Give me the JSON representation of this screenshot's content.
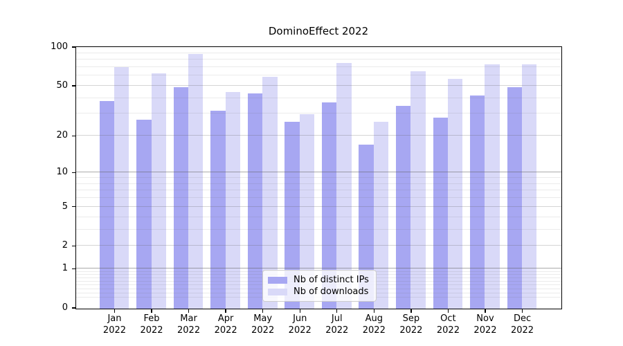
{
  "title": "DominoEffect 2022",
  "chart_data": {
    "type": "bar",
    "title": "DominoEffect 2022",
    "categories": [
      "Jan",
      "Feb",
      "Mar",
      "Apr",
      "May",
      "Jun",
      "Jul",
      "Aug",
      "Sep",
      "Oct",
      "Nov",
      "Dec"
    ],
    "category_year": "2022",
    "series": [
      {
        "name": "Nb of distinct IPs",
        "color": "#a7a7f2",
        "values": [
          38,
          27,
          49,
          32,
          44,
          26,
          37,
          17,
          35,
          28,
          42,
          49
        ]
      },
      {
        "name": "Nb of downloads",
        "color": "#d9d9f8",
        "values": [
          70,
          63,
          89,
          45,
          59,
          30,
          76,
          26,
          65,
          57,
          74,
          74
        ]
      }
    ],
    "xlabel": "",
    "ylabel": "",
    "yscale": "symlog",
    "ylim": [
      0,
      100
    ],
    "y_ticks": [
      0,
      1,
      2,
      5,
      10,
      20,
      50,
      100
    ],
    "grid": true,
    "legend_position": "lower center"
  }
}
